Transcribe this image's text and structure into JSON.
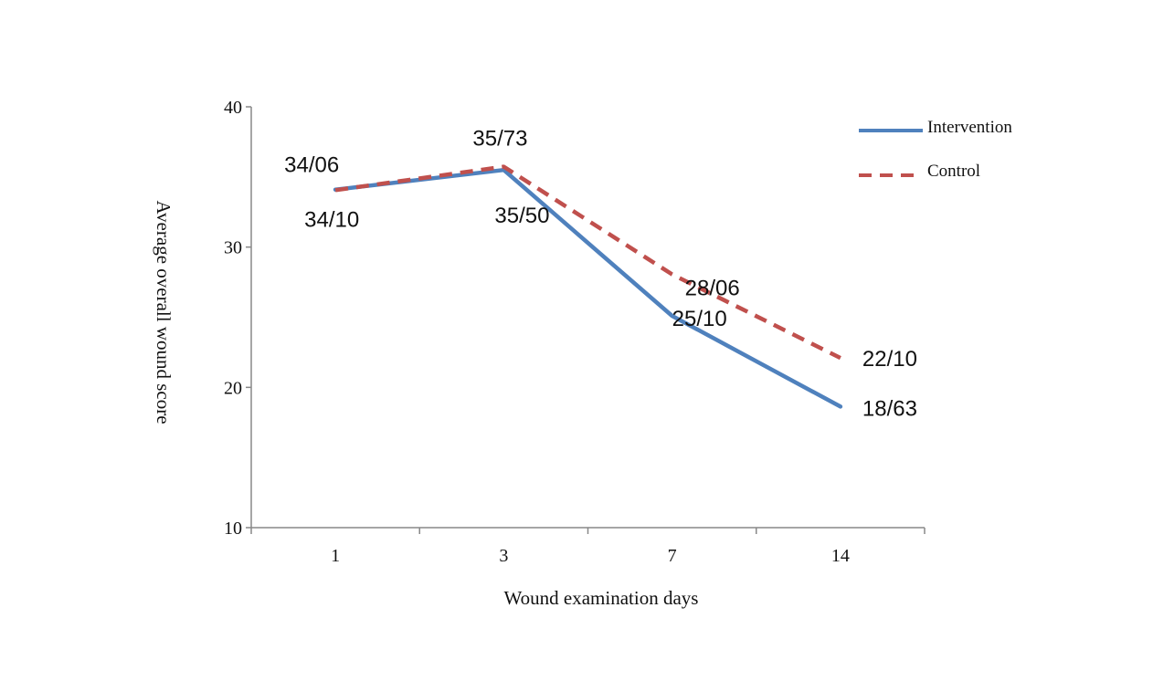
{
  "chart_data": {
    "type": "line",
    "categories": [
      "1",
      "3",
      "7",
      "14"
    ],
    "xlabel": "Wound examination days",
    "ylabel": "Average overall wound score",
    "ylim": [
      10,
      40
    ],
    "yticks": [
      10,
      20,
      30,
      40
    ],
    "grid": false,
    "legend_position": "top-right",
    "series": [
      {
        "name": "Intervention",
        "values": [
          34.1,
          35.5,
          25.1,
          18.63
        ],
        "labels": [
          "34/10",
          "35/50",
          "25/10",
          "18/63"
        ],
        "color": "#4f81bd",
        "style": "solid"
      },
      {
        "name": "Control",
        "values": [
          34.06,
          35.73,
          28.06,
          22.1
        ],
        "labels": [
          "34/06",
          "35/73",
          "28/06",
          "22/10"
        ],
        "color": "#c0504d",
        "style": "dashed"
      }
    ]
  }
}
